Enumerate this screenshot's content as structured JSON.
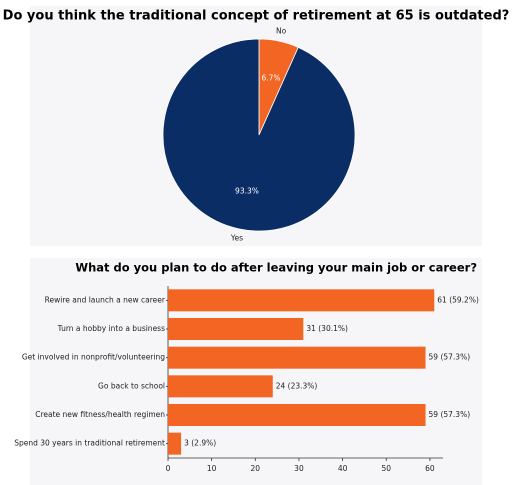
{
  "chart_data": [
    {
      "type": "pie",
      "title": "Do you think the traditional concept of retirement at 65 is outdated?",
      "categories": [
        "No",
        "Yes"
      ],
      "values": [
        6.7,
        93.3
      ],
      "value_labels": [
        "6.7%",
        "93.3%"
      ],
      "colors": [
        "#f26522",
        "#0b2d66"
      ]
    },
    {
      "type": "bar",
      "orientation": "horizontal",
      "title": "What do you plan to do after leaving your main job or career?",
      "categories": [
        "Rewire and launch a new career",
        "Turn a hobby into a business",
        "Get involved in nonprofit/volunteering",
        "Go back to school",
        "Create new fitness/health regimen",
        "Spend 30 years in traditional retirement"
      ],
      "values": [
        61,
        31,
        59,
        24,
        59,
        3
      ],
      "value_labels": [
        "61 (59.2%)",
        "31 (30.1%)",
        "59 (57.3%)",
        "24 (23.3%)",
        "59 (57.3%)",
        "3 (2.9%)"
      ],
      "color": "#f26522",
      "xlim": [
        0,
        63
      ],
      "xticks": [
        0,
        10,
        20,
        30,
        40,
        50,
        60
      ],
      "grid": false
    }
  ]
}
